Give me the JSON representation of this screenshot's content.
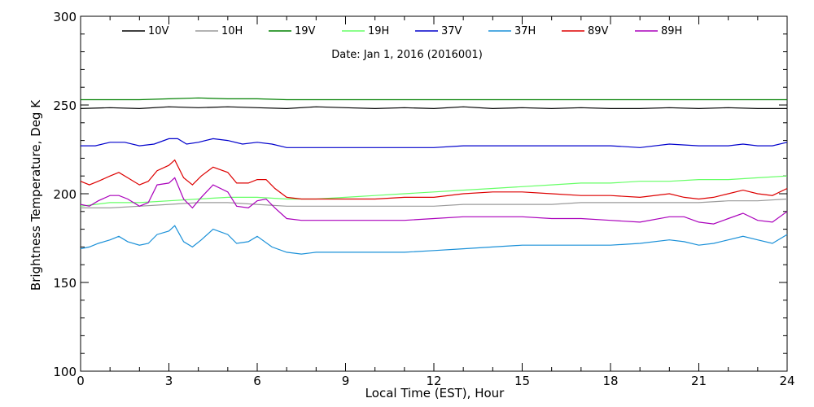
{
  "chart_data": {
    "type": "line",
    "title": "",
    "subtitle": "Date: Jan  1, 2016 (2016001)",
    "xlabel": "Local Time (EST), Hour",
    "ylabel": "Brightness Temperature, Deg K",
    "xlim": [
      0,
      24
    ],
    "ylim": [
      100,
      300
    ],
    "xticks": [
      0,
      3,
      6,
      9,
      12,
      15,
      18,
      21,
      24
    ],
    "yticks": [
      100,
      150,
      200,
      250,
      300
    ],
    "legend_position": "top",
    "grid": false,
    "series": [
      {
        "name": "10V",
        "color": "#000000",
        "points": [
          [
            0,
            248
          ],
          [
            1,
            248.5
          ],
          [
            2,
            248
          ],
          [
            3,
            249
          ],
          [
            4,
            248.5
          ],
          [
            5,
            249
          ],
          [
            6,
            248.5
          ],
          [
            7,
            248
          ],
          [
            8,
            249
          ],
          [
            9,
            248.5
          ],
          [
            10,
            248
          ],
          [
            11,
            248.5
          ],
          [
            12,
            248
          ],
          [
            13,
            249
          ],
          [
            14,
            248
          ],
          [
            15,
            248.5
          ],
          [
            16,
            248
          ],
          [
            17,
            248.5
          ],
          [
            18,
            248
          ],
          [
            19,
            248
          ],
          [
            20,
            248.5
          ],
          [
            21,
            248
          ],
          [
            22,
            248.5
          ],
          [
            23,
            248
          ],
          [
            24,
            248
          ]
        ]
      },
      {
        "name": "10H",
        "color": "#9a9a9a",
        "points": [
          [
            0,
            192
          ],
          [
            1,
            192
          ],
          [
            2,
            193
          ],
          [
            3,
            194
          ],
          [
            4,
            195
          ],
          [
            5,
            195
          ],
          [
            6,
            194
          ],
          [
            7,
            193
          ],
          [
            8,
            193
          ],
          [
            9,
            193
          ],
          [
            10,
            193
          ],
          [
            11,
            193
          ],
          [
            12,
            193
          ],
          [
            13,
            194
          ],
          [
            14,
            194
          ],
          [
            15,
            194
          ],
          [
            16,
            194
          ],
          [
            17,
            195
          ],
          [
            18,
            195
          ],
          [
            19,
            195
          ],
          [
            20,
            195
          ],
          [
            21,
            195
          ],
          [
            22,
            196
          ],
          [
            23,
            196
          ],
          [
            24,
            197
          ]
        ]
      },
      {
        "name": "19V",
        "color": "#008000",
        "points": [
          [
            0,
            253
          ],
          [
            1,
            253
          ],
          [
            2,
            253
          ],
          [
            3,
            253.5
          ],
          [
            4,
            254
          ],
          [
            5,
            253.5
          ],
          [
            6,
            253.5
          ],
          [
            7,
            253
          ],
          [
            8,
            253
          ],
          [
            9,
            253
          ],
          [
            10,
            253
          ],
          [
            11,
            253
          ],
          [
            12,
            253
          ],
          [
            13,
            253
          ],
          [
            14,
            253
          ],
          [
            15,
            253
          ],
          [
            16,
            253
          ],
          [
            17,
            253
          ],
          [
            18,
            253
          ],
          [
            19,
            253
          ],
          [
            20,
            253
          ],
          [
            21,
            253
          ],
          [
            22,
            253
          ],
          [
            23,
            253
          ],
          [
            24,
            253
          ]
        ]
      },
      {
        "name": "19H",
        "color": "#66ff66",
        "points": [
          [
            0,
            193
          ],
          [
            0.5,
            194
          ],
          [
            1,
            195
          ],
          [
            1.5,
            195
          ],
          [
            2,
            195
          ],
          [
            3,
            196
          ],
          [
            4,
            197
          ],
          [
            5,
            198
          ],
          [
            6,
            198
          ],
          [
            7,
            197
          ],
          [
            8,
            197
          ],
          [
            9,
            198
          ],
          [
            10,
            199
          ],
          [
            11,
            200
          ],
          [
            12,
            201
          ],
          [
            13,
            202
          ],
          [
            14,
            203
          ],
          [
            15,
            204
          ],
          [
            16,
            205
          ],
          [
            17,
            206
          ],
          [
            18,
            206
          ],
          [
            19,
            207
          ],
          [
            20,
            207
          ],
          [
            21,
            208
          ],
          [
            22,
            208
          ],
          [
            23,
            209
          ],
          [
            24,
            210
          ]
        ]
      },
      {
        "name": "37V",
        "color": "#0000cc",
        "points": [
          [
            0,
            227
          ],
          [
            0.5,
            227
          ],
          [
            1,
            229
          ],
          [
            1.5,
            229
          ],
          [
            2,
            227
          ],
          [
            2.5,
            228
          ],
          [
            3,
            231
          ],
          [
            3.3,
            231
          ],
          [
            3.6,
            228
          ],
          [
            4,
            229
          ],
          [
            4.5,
            231
          ],
          [
            5,
            230
          ],
          [
            5.5,
            228
          ],
          [
            6,
            229
          ],
          [
            6.5,
            228
          ],
          [
            7,
            226
          ],
          [
            8,
            226
          ],
          [
            9,
            226
          ],
          [
            10,
            226
          ],
          [
            11,
            226
          ],
          [
            12,
            226
          ],
          [
            13,
            227
          ],
          [
            14,
            227
          ],
          [
            15,
            227
          ],
          [
            16,
            227
          ],
          [
            17,
            227
          ],
          [
            18,
            227
          ],
          [
            19,
            226
          ],
          [
            20,
            228
          ],
          [
            21,
            227
          ],
          [
            22,
            227
          ],
          [
            22.5,
            228
          ],
          [
            23,
            227
          ],
          [
            23.5,
            227
          ],
          [
            24,
            229
          ]
        ]
      },
      {
        "name": "37H",
        "color": "#1a90d8",
        "points": [
          [
            0,
            169
          ],
          [
            0.3,
            170
          ],
          [
            0.6,
            172
          ],
          [
            1,
            174
          ],
          [
            1.3,
            176
          ],
          [
            1.6,
            173
          ],
          [
            2,
            171
          ],
          [
            2.3,
            172
          ],
          [
            2.6,
            177
          ],
          [
            3,
            179
          ],
          [
            3.2,
            182
          ],
          [
            3.5,
            173
          ],
          [
            3.8,
            170
          ],
          [
            4.1,
            174
          ],
          [
            4.5,
            180
          ],
          [
            5,
            177
          ],
          [
            5.3,
            172
          ],
          [
            5.7,
            173
          ],
          [
            6,
            176
          ],
          [
            6.5,
            170
          ],
          [
            7,
            167
          ],
          [
            7.5,
            166
          ],
          [
            8,
            167
          ],
          [
            9,
            167
          ],
          [
            10,
            167
          ],
          [
            11,
            167
          ],
          [
            12,
            168
          ],
          [
            13,
            169
          ],
          [
            14,
            170
          ],
          [
            15,
            171
          ],
          [
            16,
            171
          ],
          [
            17,
            171
          ],
          [
            18,
            171
          ],
          [
            19,
            172
          ],
          [
            20,
            174
          ],
          [
            20.5,
            173
          ],
          [
            21,
            171
          ],
          [
            21.5,
            172
          ],
          [
            22,
            174
          ],
          [
            22.5,
            176
          ],
          [
            23,
            174
          ],
          [
            23.5,
            172
          ],
          [
            24,
            177
          ]
        ]
      },
      {
        "name": "89V",
        "color": "#dd0000",
        "points": [
          [
            0,
            207
          ],
          [
            0.3,
            205
          ],
          [
            0.6,
            207
          ],
          [
            1,
            210
          ],
          [
            1.3,
            212
          ],
          [
            1.6,
            209
          ],
          [
            2,
            205
          ],
          [
            2.3,
            207
          ],
          [
            2.6,
            213
          ],
          [
            3,
            216
          ],
          [
            3.2,
            219
          ],
          [
            3.5,
            209
          ],
          [
            3.8,
            205
          ],
          [
            4.1,
            210
          ],
          [
            4.5,
            215
          ],
          [
            5,
            212
          ],
          [
            5.3,
            206
          ],
          [
            5.7,
            206
          ],
          [
            6,
            208
          ],
          [
            6.3,
            208
          ],
          [
            6.6,
            203
          ],
          [
            7,
            198
          ],
          [
            7.5,
            197
          ],
          [
            8,
            197
          ],
          [
            9,
            197
          ],
          [
            10,
            197
          ],
          [
            11,
            198
          ],
          [
            12,
            198
          ],
          [
            13,
            200
          ],
          [
            14,
            201
          ],
          [
            15,
            201
          ],
          [
            16,
            200
          ],
          [
            17,
            199
          ],
          [
            18,
            199
          ],
          [
            19,
            198
          ],
          [
            20,
            200
          ],
          [
            20.5,
            198
          ],
          [
            21,
            197
          ],
          [
            21.5,
            198
          ],
          [
            22,
            200
          ],
          [
            22.5,
            202
          ],
          [
            23,
            200
          ],
          [
            23.5,
            199
          ],
          [
            24,
            203
          ]
        ]
      },
      {
        "name": "89H",
        "color": "#aa00bb",
        "points": [
          [
            0,
            194
          ],
          [
            0.3,
            193
          ],
          [
            0.6,
            196
          ],
          [
            1,
            199
          ],
          [
            1.3,
            199
          ],
          [
            1.6,
            197
          ],
          [
            2,
            193
          ],
          [
            2.3,
            195
          ],
          [
            2.6,
            205
          ],
          [
            3,
            206
          ],
          [
            3.2,
            209
          ],
          [
            3.5,
            197
          ],
          [
            3.8,
            192
          ],
          [
            4.1,
            198
          ],
          [
            4.5,
            205
          ],
          [
            5,
            201
          ],
          [
            5.3,
            193
          ],
          [
            5.7,
            192
          ],
          [
            6,
            196
          ],
          [
            6.3,
            197
          ],
          [
            6.6,
            192
          ],
          [
            7,
            186
          ],
          [
            7.5,
            185
          ],
          [
            8,
            185
          ],
          [
            9,
            185
          ],
          [
            10,
            185
          ],
          [
            11,
            185
          ],
          [
            12,
            186
          ],
          [
            13,
            187
          ],
          [
            14,
            187
          ],
          [
            15,
            187
          ],
          [
            16,
            186
          ],
          [
            17,
            186
          ],
          [
            18,
            185
          ],
          [
            19,
            184
          ],
          [
            20,
            187
          ],
          [
            20.5,
            187
          ],
          [
            21,
            184
          ],
          [
            21.5,
            183
          ],
          [
            22,
            186
          ],
          [
            22.5,
            189
          ],
          [
            23,
            185
          ],
          [
            23.5,
            184
          ],
          [
            24,
            190
          ]
        ]
      }
    ]
  }
}
